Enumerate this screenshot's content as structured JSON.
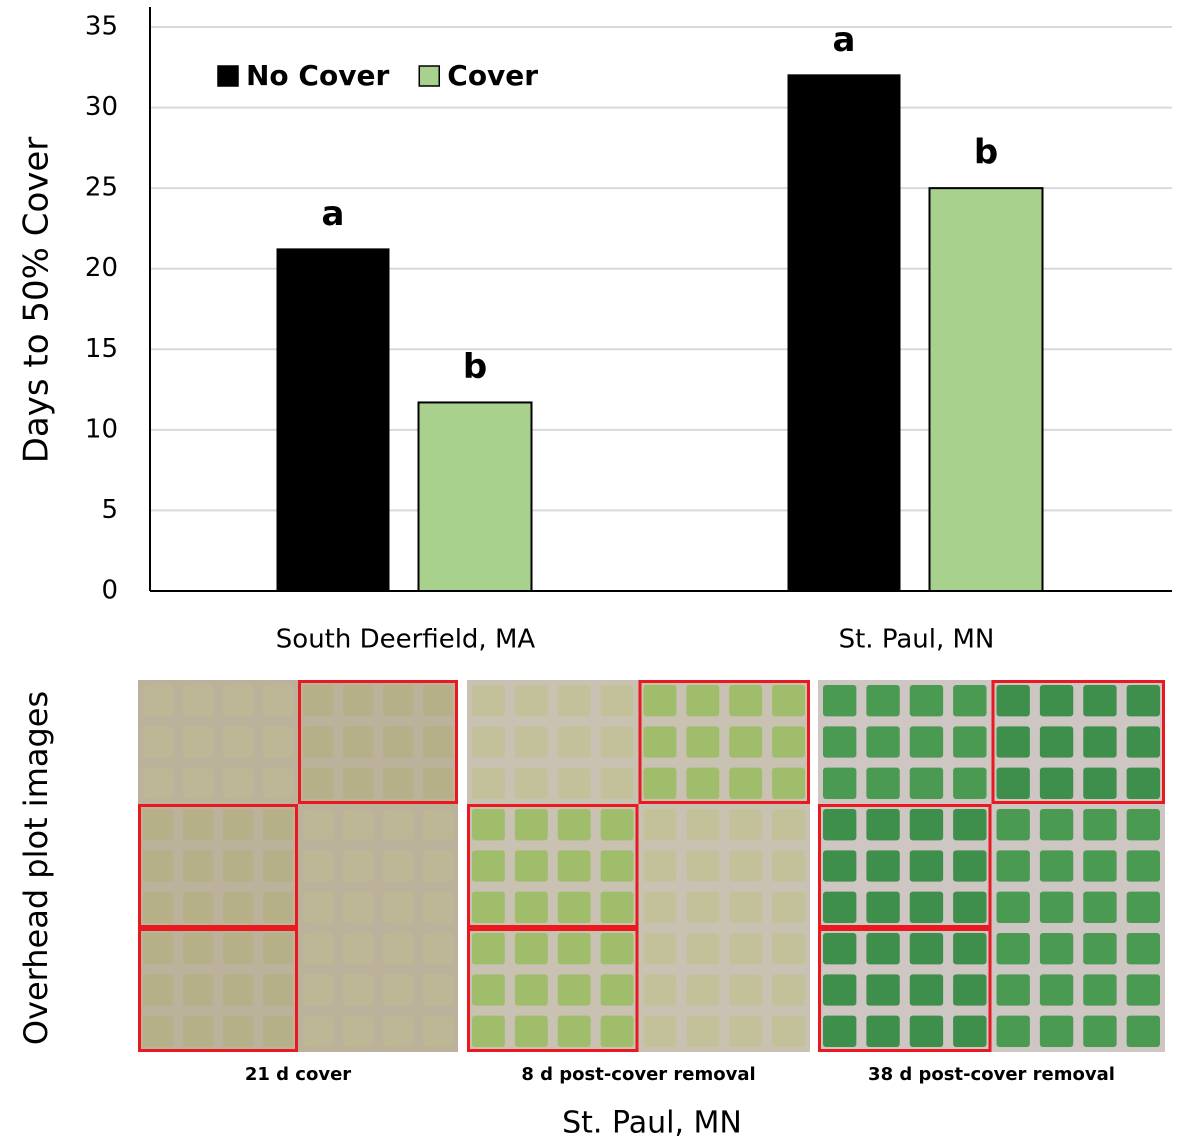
{
  "chart_data": {
    "type": "bar",
    "ylabel": "Days to 50% Cover",
    "categories": [
      "South Deerfield, MA",
      "St. Paul, MN"
    ],
    "series": [
      {
        "name": "No Cover",
        "color": "#000000",
        "values": [
          21.2,
          32.0
        ],
        "letters": [
          "a",
          "a"
        ]
      },
      {
        "name": "Cover",
        "color": "#a9d18e",
        "values": [
          11.7,
          25.0
        ],
        "letters": [
          "b",
          "b"
        ]
      }
    ],
    "ylim": [
      0,
      35
    ],
    "yticks": [
      0,
      5,
      10,
      15,
      20,
      25,
      30,
      35
    ],
    "grid": true,
    "legend": "top-left"
  },
  "images": {
    "ylabel": "Overhead plot images",
    "captions": [
      "21 d cover",
      "8 d post-cover removal",
      "38 d post-cover removal"
    ],
    "xlabel": "St. Paul, MN"
  }
}
